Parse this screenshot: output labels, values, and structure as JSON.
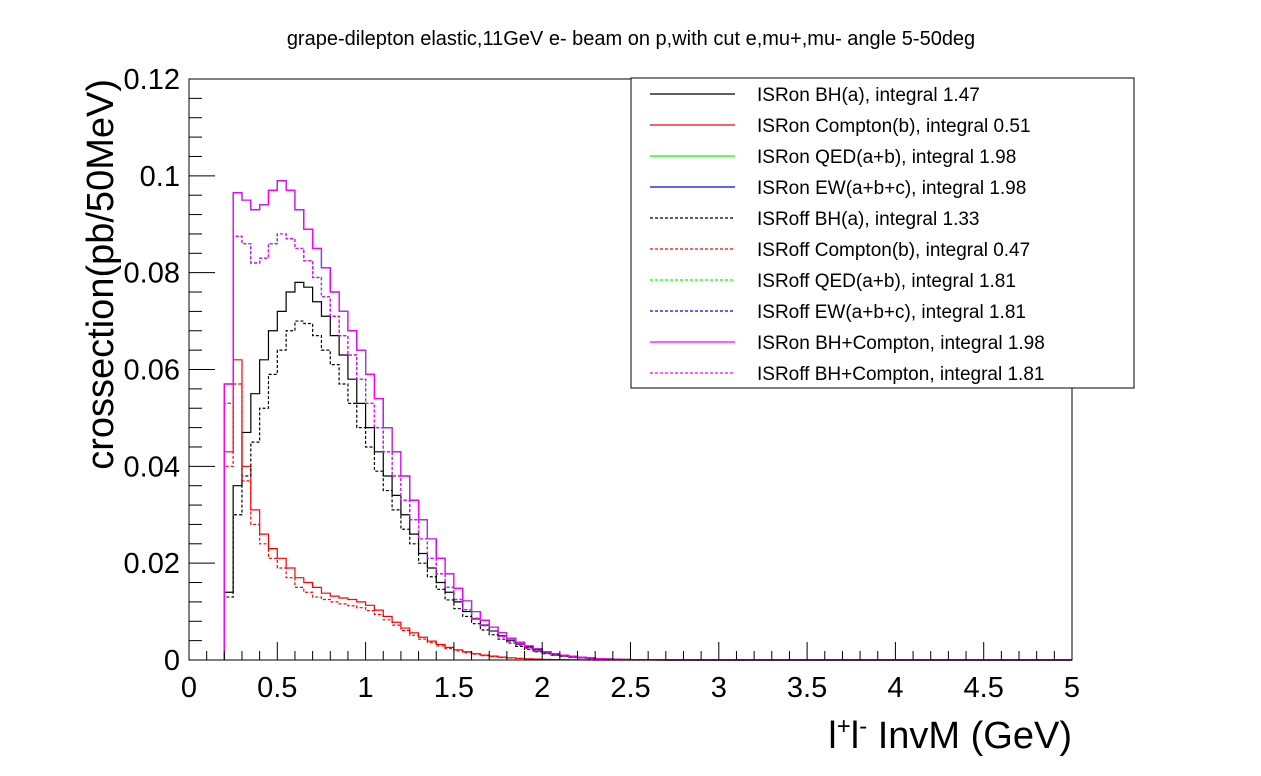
{
  "chart_data": {
    "type": "line",
    "style": "step-histogram",
    "title": "grape-dilepton elastic,11GeV e- beam on p,with cut e,mu+,mu- angle 5-50deg",
    "xlabel": "l+l- InvM (GeV)",
    "xlabel_parts": {
      "l1": "l",
      "sup1": "+",
      "l2": "l",
      "sup2": "-",
      "rest": " InvM (GeV)"
    },
    "ylabel": "crossection(pb/50MeV)",
    "xlim": [
      0,
      5
    ],
    "ylim": [
      0,
      0.12
    ],
    "bin_width": 0.05,
    "x_ticks": [
      0,
      0.5,
      1,
      1.5,
      2,
      2.5,
      3,
      3.5,
      4,
      4.5,
      5
    ],
    "x_tick_labels": [
      "0",
      "0.5",
      "1",
      "1.5",
      "2",
      "2.5",
      "3",
      "3.5",
      "4",
      "4.5",
      "5"
    ],
    "y_ticks": [
      0,
      0.02,
      0.04,
      0.06,
      0.08,
      0.1,
      0.12
    ],
    "y_tick_labels": [
      "0",
      "0.02",
      "0.04",
      "0.06",
      "0.08",
      "0.1",
      "0.12"
    ],
    "grid": false,
    "legend_position": "top-right",
    "series_style": [
      {
        "color": "#000000",
        "dashed": false
      },
      {
        "color": "#ff0000",
        "dashed": false
      },
      {
        "color": "#00ff00",
        "dashed": false
      },
      {
        "color": "#0000ff",
        "dashed": false
      },
      {
        "color": "#000000",
        "dashed": true
      },
      {
        "color": "#ff0000",
        "dashed": true
      },
      {
        "color": "#00ff00",
        "dashed": true
      },
      {
        "color": "#0000ff",
        "dashed": true
      },
      {
        "color": "#ff00ff",
        "dashed": false
      },
      {
        "color": "#ff00ff",
        "dashed": true
      }
    ],
    "series": [
      {
        "name": "ISRon BH(a), integral 1.47",
        "x_start": 0.2,
        "values": [
          0.014,
          0.036,
          0.047,
          0.055,
          0.062,
          0.068,
          0.072,
          0.076,
          0.078,
          0.077,
          0.074,
          0.071,
          0.067,
          0.063,
          0.058,
          0.053,
          0.048,
          0.043,
          0.038,
          0.034,
          0.03,
          0.026,
          0.022,
          0.019,
          0.016,
          0.014,
          0.012,
          0.01,
          0.0085,
          0.0072,
          0.006,
          0.005,
          0.0041,
          0.0033,
          0.0027,
          0.0021,
          0.0016,
          0.0013,
          0.001,
          0.0008,
          0.0006,
          0.00045,
          0.0003,
          0.0002,
          0.00015,
          0.0001,
          5e-05,
          3e-05,
          2e-05,
          1e-05
        ]
      },
      {
        "name": "ISRon Compton(b), integral 0.51",
        "x_start": 0.2,
        "values": [
          0.043,
          0.062,
          0.04,
          0.031,
          0.026,
          0.023,
          0.021,
          0.019,
          0.017,
          0.016,
          0.015,
          0.0138,
          0.0132,
          0.0128,
          0.0125,
          0.012,
          0.0113,
          0.0103,
          0.009,
          0.0078,
          0.0066,
          0.0056,
          0.0047,
          0.0039,
          0.0032,
          0.0026,
          0.0021,
          0.0017,
          0.0013,
          0.001,
          0.0008,
          0.0006,
          0.00045,
          0.00035,
          0.00025,
          0.00018,
          0.00012,
          8e-05,
          5e-05,
          3e-05,
          2e-05,
          1e-05,
          0,
          0,
          0,
          0,
          0,
          0,
          0,
          0
        ]
      },
      {
        "name": "ISRon QED(a+b), integral 1.98",
        "x_start": 0.2,
        "values": [
          0.057,
          0.0965,
          0.095,
          0.093,
          0.094,
          0.097,
          0.099,
          0.097,
          0.093,
          0.089,
          0.085,
          0.081,
          0.076,
          0.072,
          0.068,
          0.064,
          0.059,
          0.054,
          0.048,
          0.043,
          0.038,
          0.033,
          0.029,
          0.025,
          0.021,
          0.0178,
          0.0148,
          0.0122,
          0.01,
          0.0082,
          0.0068,
          0.0056,
          0.0045,
          0.0037,
          0.0029,
          0.0023,
          0.0017,
          0.0013,
          0.001,
          0.0008,
          0.0006,
          0.00045,
          0.0003,
          0.0002,
          0.00015,
          0.0001,
          5e-05,
          3e-05,
          2e-05,
          1e-05
        ]
      },
      {
        "name": "ISRon EW(a+b+c), integral 1.98",
        "x_start": 0.2,
        "values": [
          0.057,
          0.0965,
          0.095,
          0.093,
          0.094,
          0.097,
          0.099,
          0.097,
          0.093,
          0.089,
          0.085,
          0.081,
          0.076,
          0.072,
          0.068,
          0.064,
          0.059,
          0.054,
          0.048,
          0.043,
          0.038,
          0.033,
          0.029,
          0.025,
          0.021,
          0.0178,
          0.0148,
          0.0122,
          0.01,
          0.0082,
          0.0068,
          0.0056,
          0.0045,
          0.0037,
          0.0029,
          0.0023,
          0.0017,
          0.0013,
          0.001,
          0.0008,
          0.0006,
          0.00045,
          0.0003,
          0.0002,
          0.00015,
          0.0001,
          5e-05,
          3e-05,
          2e-05,
          1e-05
        ]
      },
      {
        "name": "ISRoff BH(a), integral 1.33",
        "x_start": 0.2,
        "values": [
          0.013,
          0.03,
          0.038,
          0.045,
          0.052,
          0.059,
          0.064,
          0.068,
          0.07,
          0.0695,
          0.067,
          0.064,
          0.061,
          0.057,
          0.053,
          0.048,
          0.044,
          0.039,
          0.035,
          0.031,
          0.027,
          0.024,
          0.02,
          0.0172,
          0.0146,
          0.0124,
          0.0106,
          0.009,
          0.0075,
          0.0062,
          0.0052,
          0.0043,
          0.0035,
          0.0028,
          0.0022,
          0.0017,
          0.0013,
          0.001,
          0.0008,
          0.0006,
          0.00045,
          0.0003,
          0.0002,
          0.00015,
          0.0001,
          6e-05,
          4e-05,
          2e-05,
          1e-05,
          0
        ]
      },
      {
        "name": "ISRoff Compton(b), integral 0.47",
        "x_start": 0.2,
        "values": [
          0.04,
          0.057,
          0.037,
          0.028,
          0.024,
          0.021,
          0.019,
          0.017,
          0.015,
          0.014,
          0.013,
          0.0125,
          0.012,
          0.0116,
          0.0112,
          0.0108,
          0.0102,
          0.0094,
          0.0083,
          0.0072,
          0.0061,
          0.0051,
          0.0043,
          0.0036,
          0.0029,
          0.0024,
          0.0019,
          0.0015,
          0.0012,
          0.0009,
          0.0007,
          0.0005,
          0.0004,
          0.0003,
          0.0002,
          0.00015,
          0.0001,
          6e-05,
          4e-05,
          2e-05,
          1e-05,
          0,
          0,
          0,
          0,
          0,
          0,
          0,
          0,
          0
        ]
      },
      {
        "name": "ISRoff QED(a+b), integral 1.81",
        "x_start": 0.2,
        "values": [
          0.053,
          0.0875,
          0.086,
          0.082,
          0.083,
          0.086,
          0.088,
          0.087,
          0.085,
          0.0825,
          0.079,
          0.075,
          0.071,
          0.067,
          0.063,
          0.058,
          0.053,
          0.048,
          0.043,
          0.038,
          0.033,
          0.029,
          0.025,
          0.021,
          0.0178,
          0.015,
          0.0125,
          0.0104,
          0.0086,
          0.0071,
          0.0059,
          0.0048,
          0.0039,
          0.0031,
          0.0024,
          0.0018,
          0.0014,
          0.001,
          0.0008,
          0.0006,
          0.00045,
          0.0003,
          0.0002,
          0.00015,
          0.0001,
          6e-05,
          4e-05,
          2e-05,
          1e-05,
          0
        ]
      },
      {
        "name": "ISRoff EW(a+b+c), integral 1.81",
        "x_start": 0.2,
        "values": [
          0.053,
          0.0875,
          0.086,
          0.082,
          0.083,
          0.086,
          0.088,
          0.087,
          0.085,
          0.0825,
          0.079,
          0.075,
          0.071,
          0.067,
          0.063,
          0.058,
          0.053,
          0.048,
          0.043,
          0.038,
          0.033,
          0.029,
          0.025,
          0.021,
          0.0178,
          0.015,
          0.0125,
          0.0104,
          0.0086,
          0.0071,
          0.0059,
          0.0048,
          0.0039,
          0.0031,
          0.0024,
          0.0018,
          0.0014,
          0.001,
          0.0008,
          0.0006,
          0.00045,
          0.0003,
          0.0002,
          0.00015,
          0.0001,
          6e-05,
          4e-05,
          2e-05,
          1e-05,
          0
        ]
      },
      {
        "name": "ISRon BH+Compton, integral 1.98",
        "x_start": 0.2,
        "values": [
          0.057,
          0.0965,
          0.095,
          0.093,
          0.094,
          0.097,
          0.099,
          0.097,
          0.093,
          0.089,
          0.085,
          0.081,
          0.076,
          0.072,
          0.068,
          0.064,
          0.059,
          0.054,
          0.048,
          0.043,
          0.038,
          0.033,
          0.029,
          0.025,
          0.021,
          0.0178,
          0.0148,
          0.0122,
          0.01,
          0.0082,
          0.0068,
          0.0056,
          0.0045,
          0.0037,
          0.0029,
          0.0023,
          0.0017,
          0.0013,
          0.001,
          0.0008,
          0.0006,
          0.00045,
          0.0003,
          0.0002,
          0.00015,
          0.0001,
          5e-05,
          3e-05,
          2e-05,
          1e-05
        ]
      },
      {
        "name": "ISRoff BH+Compton, integral 1.81",
        "x_start": 0.2,
        "values": [
          0.053,
          0.0875,
          0.086,
          0.082,
          0.083,
          0.086,
          0.088,
          0.087,
          0.085,
          0.0825,
          0.079,
          0.075,
          0.071,
          0.067,
          0.063,
          0.058,
          0.053,
          0.048,
          0.043,
          0.038,
          0.033,
          0.029,
          0.025,
          0.021,
          0.0178,
          0.015,
          0.0125,
          0.0104,
          0.0086,
          0.0071,
          0.0059,
          0.0048,
          0.0039,
          0.0031,
          0.0024,
          0.0018,
          0.0014,
          0.001,
          0.0008,
          0.0006,
          0.00045,
          0.0003,
          0.0002,
          0.00015,
          0.0001,
          6e-05,
          4e-05,
          2e-05,
          1e-05,
          0
        ]
      }
    ]
  }
}
